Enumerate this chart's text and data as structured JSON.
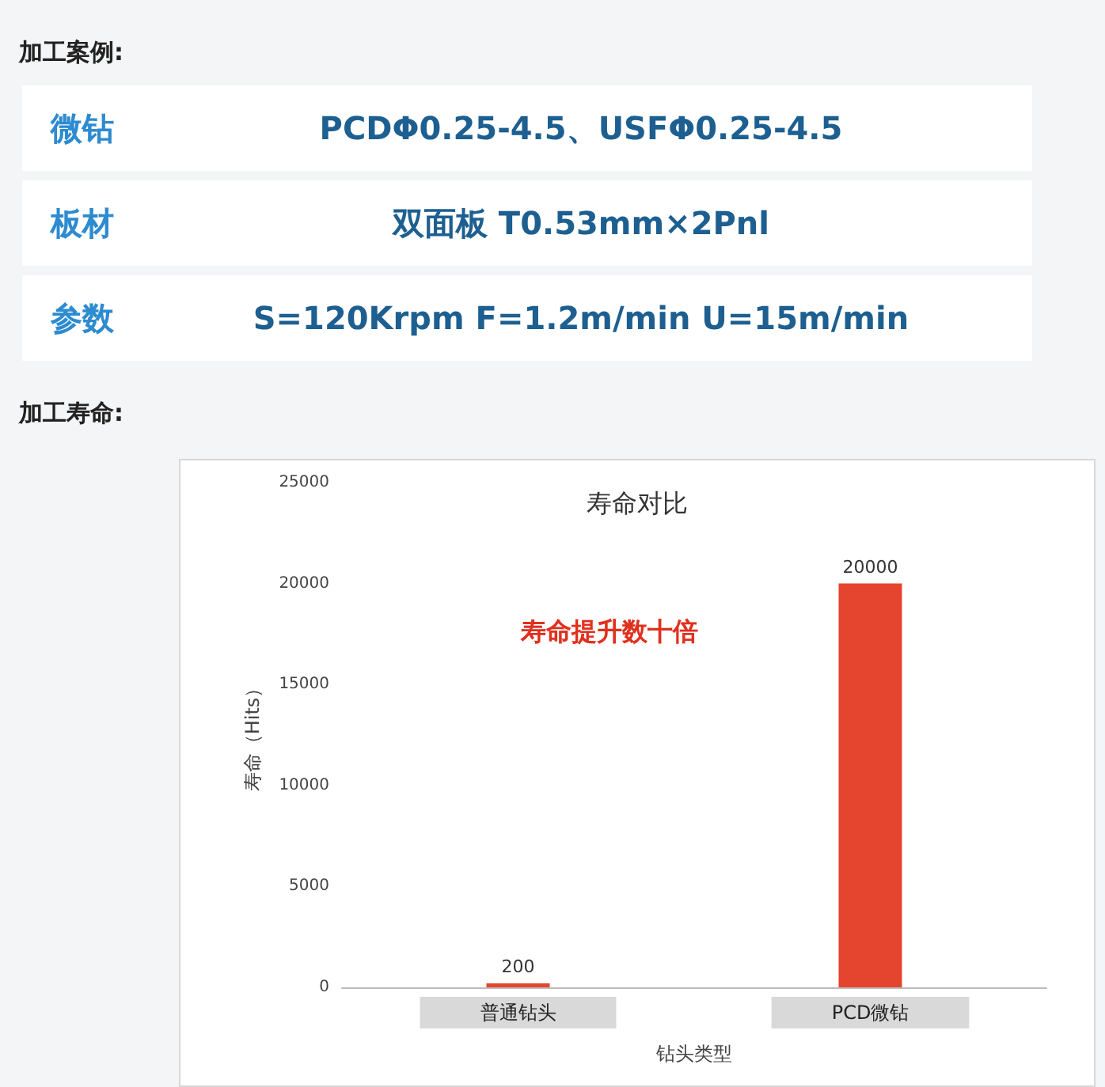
{
  "chart_data": [
    {
      "type": "other",
      "title": "加工案例:",
      "annotations": [
        "微钻",
        "PCDΦ0.25-4.5、USFΦ0.25-4.5",
        "板材",
        "双面板  T0.53mm×2Pnl",
        "参数",
        "S=120Krpm F=1.2m/min U=15m/min",
        "加工寿命:"
      ]
    },
    {
      "type": "bar",
      "title": "寿命对比",
      "xlabel": "钻头类型",
      "ylabel": "寿命（Hits）",
      "categories": [
        "普通钻头",
        "PCD微钻"
      ],
      "values": [
        200,
        20000
      ],
      "color": "#e5442e",
      "ylim": [
        0,
        25000
      ],
      "yticks": [
        0,
        5000,
        10000,
        15000,
        20000,
        25000
      ],
      "data_labels": true,
      "annotations": [
        "寿命提升数十倍"
      ]
    }
  ]
}
